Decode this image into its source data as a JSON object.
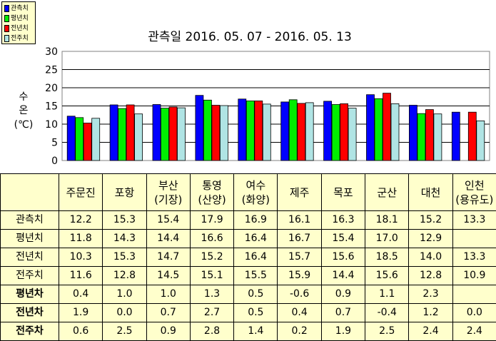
{
  "chart_data": {
    "type": "bar",
    "title": "관측일 2016. 05. 07 - 2016. 05. 13",
    "ylabel_lines": [
      "수",
      "온",
      "(℃)"
    ],
    "ylim": [
      0,
      30
    ],
    "yticks": [
      0,
      5,
      10,
      15,
      20,
      25,
      30
    ],
    "grid": true,
    "legend_position": "top-left",
    "categories": [
      "주문진",
      "포항",
      "부산\n(기장)",
      "통영\n(산양)",
      "여수\n(화양)",
      "제주",
      "목포",
      "군산",
      "대천",
      "인천\n(용유도)"
    ],
    "series": [
      {
        "name": "관측치",
        "color": "#0000ff",
        "values": [
          12.2,
          15.3,
          15.4,
          17.9,
          16.9,
          16.1,
          16.3,
          18.1,
          15.2,
          13.3
        ]
      },
      {
        "name": "평년치",
        "color": "#00ee00",
        "values": [
          11.8,
          14.3,
          14.4,
          16.6,
          16.4,
          16.7,
          15.4,
          17.0,
          12.9,
          null
        ]
      },
      {
        "name": "전년치",
        "color": "#ff0000",
        "values": [
          10.3,
          15.3,
          14.7,
          15.2,
          16.4,
          15.7,
          15.6,
          18.5,
          14.0,
          13.3
        ]
      },
      {
        "name": "전주치",
        "color": "#b0e4e4",
        "values": [
          11.6,
          12.8,
          14.5,
          15.1,
          15.5,
          15.9,
          14.4,
          15.6,
          12.8,
          10.9
        ]
      }
    ]
  },
  "table": {
    "headers": [
      "주문진",
      "포항",
      "부산\n(기장)",
      "통영\n(산양)",
      "여수\n(화양)",
      "제주",
      "목포",
      "군산",
      "대천",
      "인천\n(용유도)"
    ],
    "rows": [
      {
        "label": "관측치",
        "bold": false,
        "cells": [
          "12.2",
          "15.3",
          "15.4",
          "17.9",
          "16.9",
          "16.1",
          "16.3",
          "18.1",
          "15.2",
          "13.3"
        ]
      },
      {
        "label": "평년치",
        "bold": false,
        "cells": [
          "11.8",
          "14.3",
          "14.4",
          "16.6",
          "16.4",
          "16.7",
          "15.4",
          "17.0",
          "12.9",
          ""
        ]
      },
      {
        "label": "전년치",
        "bold": false,
        "cells": [
          "10.3",
          "15.3",
          "14.7",
          "15.2",
          "16.4",
          "15.7",
          "15.6",
          "18.5",
          "14.0",
          "13.3"
        ]
      },
      {
        "label": "전주치",
        "bold": false,
        "cells": [
          "11.6",
          "12.8",
          "14.5",
          "15.1",
          "15.5",
          "15.9",
          "14.4",
          "15.6",
          "12.8",
          "10.9"
        ]
      },
      {
        "label": "평년차",
        "bold": true,
        "cells": [
          "0.4",
          "1.0",
          "1.0",
          "1.3",
          "0.5",
          "-0.6",
          "0.9",
          "1.1",
          "2.3",
          ""
        ]
      },
      {
        "label": "전년차",
        "bold": true,
        "cells": [
          "1.9",
          "0.0",
          "0.7",
          "2.7",
          "0.5",
          "0.4",
          "0.7",
          "-0.4",
          "1.2",
          "0.0"
        ]
      },
      {
        "label": "전주차",
        "bold": true,
        "cells": [
          "0.6",
          "2.5",
          "0.9",
          "2.8",
          "1.4",
          "0.2",
          "1.9",
          "2.5",
          "2.4",
          "2.4"
        ]
      }
    ]
  }
}
